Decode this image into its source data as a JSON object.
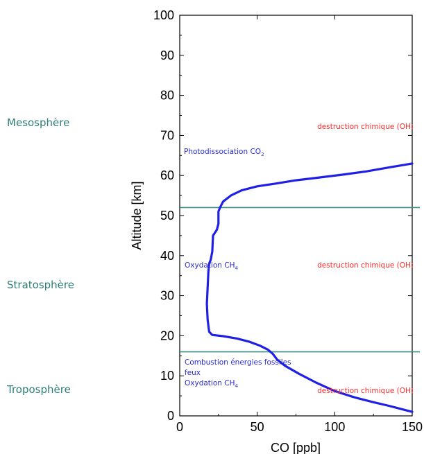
{
  "chart_data": {
    "type": "line",
    "xlabel": "CO [ppb]",
    "ylabel": "Altitude [km]",
    "xlim": [
      0,
      150
    ],
    "ylim": [
      0,
      100
    ],
    "x_ticks": [
      0,
      50,
      100,
      150
    ],
    "y_ticks": [
      0,
      10,
      20,
      30,
      40,
      50,
      60,
      70,
      80,
      90,
      100
    ],
    "grid": false,
    "series": [
      {
        "color": "#1f1fe6",
        "points": [
          [
            150,
            1
          ],
          [
            145,
            1.5
          ],
          [
            135,
            2.5
          ],
          [
            125,
            3.4
          ],
          [
            113,
            4.6
          ],
          [
            100,
            6.2
          ],
          [
            88,
            8.3
          ],
          [
            77,
            10.5
          ],
          [
            68,
            12.5
          ],
          [
            63,
            14
          ],
          [
            60,
            15.5
          ],
          [
            57,
            16.5
          ],
          [
            52,
            17.5
          ],
          [
            45,
            18.5
          ],
          [
            37,
            19.3
          ],
          [
            28,
            19.9
          ],
          [
            21,
            20.2
          ],
          [
            19,
            21
          ],
          [
            18,
            24
          ],
          [
            17.5,
            28
          ],
          [
            18,
            32
          ],
          [
            18.5,
            36
          ],
          [
            19,
            38
          ],
          [
            20,
            39
          ],
          [
            21,
            41
          ],
          [
            21.5,
            45
          ],
          [
            24,
            46.5
          ],
          [
            25,
            48
          ],
          [
            25,
            51
          ],
          [
            26,
            52
          ],
          [
            28,
            53.5
          ],
          [
            33,
            55
          ],
          [
            40,
            56.3
          ],
          [
            50,
            57.3
          ],
          [
            62,
            58
          ],
          [
            75,
            58.8
          ],
          [
            90,
            59.5
          ],
          [
            105,
            60.2
          ],
          [
            120,
            61
          ],
          [
            135,
            62
          ],
          [
            150,
            63
          ]
        ]
      }
    ],
    "boundaries": [
      {
        "altitude": 52,
        "color": "#3a8f86"
      },
      {
        "altitude": 16,
        "color": "#3a8f86"
      }
    ]
  },
  "layers": {
    "mesosphere": "Mesosphère",
    "stratosphere": "Stratosphère",
    "troposphere": "Troposphère",
    "color": "#2e7d78"
  },
  "annotations": {
    "photodissociation": "Photodissociation CO",
    "photodissociation_sub": "2",
    "oxydation_strato": "Oxydation CH",
    "oxydation_strato_sub": "4",
    "combustion": "Combustion énergies fossiles",
    "feux": "feux",
    "oxydation_tropo": "Oxydation CH",
    "oxydation_tropo_sub": "4",
    "destruction_meso": "destruction chimique (OH)",
    "destruction_strato": "destruction chimique (OH)",
    "destruction_tropo": "destruction chimique (OH)",
    "source_color": "#2a2ad0",
    "sink_color": "#ff2a2a"
  }
}
